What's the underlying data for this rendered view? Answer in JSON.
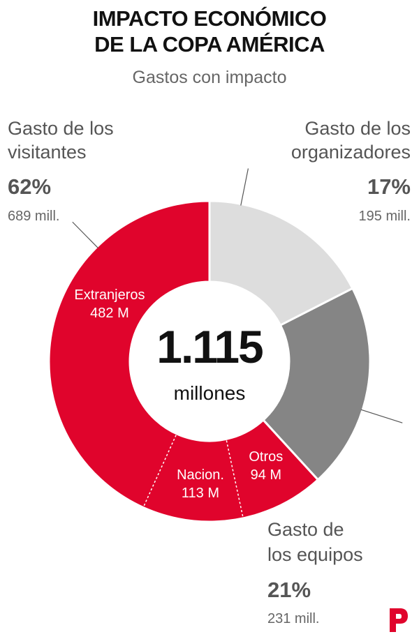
{
  "header": {
    "title_line1": "IMPACTO ECONÓMICO",
    "title_line2": "DE LA COPA AMÉRICA",
    "subtitle": "Gastos con impacto"
  },
  "colors": {
    "visitantes": "#e0042c",
    "organizadores": "#dddddd",
    "equipos": "#858585",
    "logo": "#e0042c"
  },
  "chart_data": {
    "type": "pie",
    "variant": "donut",
    "total": 1115,
    "center_value": "1.115",
    "center_unit": "millones",
    "categories": [
      {
        "name_line1": "Gasto de los",
        "name_line2": "visitantes",
        "percent_label": "62%",
        "percent": 62,
        "amount_label": "689 mill.",
        "value": 689,
        "subcategories": [
          {
            "name": "Extranjeros",
            "value": 482,
            "label": "482 M"
          },
          {
            "name": "Nacion.",
            "value": 113,
            "label": "113 M"
          },
          {
            "name": "Otros",
            "value": 94,
            "label": "94 M"
          }
        ]
      },
      {
        "name_line1": "Gasto de los",
        "name_line2": "organizadores",
        "percent_label": "17%",
        "percent": 17,
        "amount_label": "195 mill.",
        "value": 195
      },
      {
        "name_line1": "Gasto de",
        "name_line2": "los equipos",
        "percent_label": "21%",
        "percent": 21,
        "amount_label": "231 mill.",
        "value": 231
      }
    ]
  }
}
